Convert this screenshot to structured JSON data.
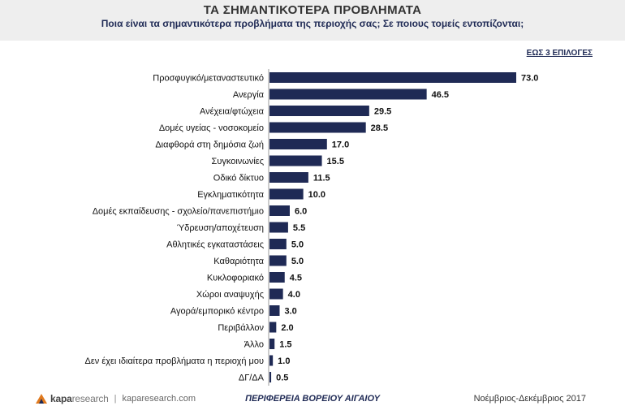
{
  "header": {
    "title": "ΤΑ ΣΗΜΑΝΤΙΚΟΤΕΡΑ ΠΡΟΒΛΗΜΑΤΑ",
    "subtitle": "Ποια είναι τα σημαντικότερα προβλήματα της περιοχής σας; Σε ποιους τομείς εντοπίζονται;"
  },
  "note": "ΕΩΣ 3 ΕΠΙΛΟΓΕΣ",
  "colors": {
    "bar": "#1f2a55",
    "label": "#111111"
  },
  "chart_data": {
    "type": "bar",
    "orientation": "horizontal",
    "categories": [
      "Προσφυγικό/μεταναστευτικό",
      "Ανεργία",
      "Ανέχεια/φτώχεια",
      "Δομές υγείας - νοσοκομείο",
      "Διαφθορά στη δημόσια ζωή",
      "Συγκοινωνίες",
      "Οδικό δίκτυο",
      "Εγκληματικότητα",
      "Δομές εκπαίδευσης - σχολείο/πανεπιστήμιο",
      "Ύδρευση/αποχέτευση",
      "Αθλητικές εγκαταστάσεις",
      "Καθαριότητα",
      "Κυκλοφοριακό",
      "Χώροι αναψυχής",
      "Αγορά/εμπορικό κέντρο",
      "Περιβάλλον",
      "Άλλο",
      "Δεν έχει ιδιαίτερα προβλήματα η περιοχή μου",
      "ΔΓ/ΔΑ"
    ],
    "values": [
      73.0,
      46.5,
      29.5,
      28.5,
      17.0,
      15.5,
      11.5,
      10.0,
      6.0,
      5.5,
      5.0,
      5.0,
      4.5,
      4.0,
      3.0,
      2.0,
      1.5,
      1.0,
      0.5
    ],
    "value_labels": [
      "73.0",
      "46.5",
      "29.5",
      "28.5",
      "17.0",
      "15.5",
      "11.5",
      "10.0",
      "6.0",
      "5.5",
      "5.0",
      "5.0",
      "4.5",
      "4.0",
      "3.0",
      "2.0",
      "1.5",
      "1.0",
      "0.5"
    ],
    "title": "ΤΑ ΣΗΜΑΝΤΙΚΟΤΕΡΑ ΠΡΟΒΛΗΜΑΤΑ",
    "xlim": [
      0,
      73
    ],
    "grid": false,
    "legend": "none"
  },
  "footer": {
    "brand_a": "kapa",
    "brand_b": "research",
    "separator": "|",
    "url": "kaparesearch.com",
    "region": "ΠΕΡΙΦΕΡΕΙΑ ΒΟΡΕΙΟΥ ΑΙΓΑΙΟΥ",
    "date": "Νοέμβριος-Δεκέμβριος 2017"
  }
}
